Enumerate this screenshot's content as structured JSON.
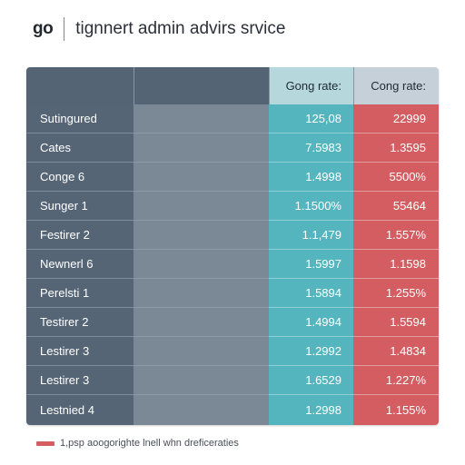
{
  "header": {
    "brand": "go",
    "title": "tignnert admin advirs srvice"
  },
  "table": {
    "columns": [
      "",
      "",
      "Gong rate:",
      "Cong rate:"
    ],
    "rows": [
      {
        "name": "Sutingured",
        "a": "125,08",
        "b": "22999"
      },
      {
        "name": "Cates",
        "a": "7.5983",
        "b": "1.3595"
      },
      {
        "name": "Conge 6",
        "a": "1.4998",
        "b": "5500%"
      },
      {
        "name": "Sunger 1",
        "a": "1.1500%",
        "b": "55464"
      },
      {
        "name": "Festirer 2",
        "a": "1.1,479",
        "b": "1.557%"
      },
      {
        "name": "Newnerl 6",
        "a": "1.5997",
        "b": "1.1598"
      },
      {
        "name": "Perelsti 1",
        "a": "1.5894",
        "b": "1.255%"
      },
      {
        "name": "Testirer 2",
        "a": "1.4994",
        "b": "1.5594"
      },
      {
        "name": "Lestirer 3",
        "a": "1.2992",
        "b": "1.4834"
      },
      {
        "name": "Lestirer 3",
        "a": "1.6529",
        "b": "1.227%"
      },
      {
        "name": "Lestnied 4",
        "a": "1.2998",
        "b": "1.155%"
      }
    ]
  },
  "footer": {
    "legend_text": "1,psp aoogorighte lnell whn dreficeraties",
    "legend_color": "#d35d60"
  },
  "colors": {
    "teal": "#55b5be",
    "red": "#d35d60",
    "slate": "#566576"
  }
}
